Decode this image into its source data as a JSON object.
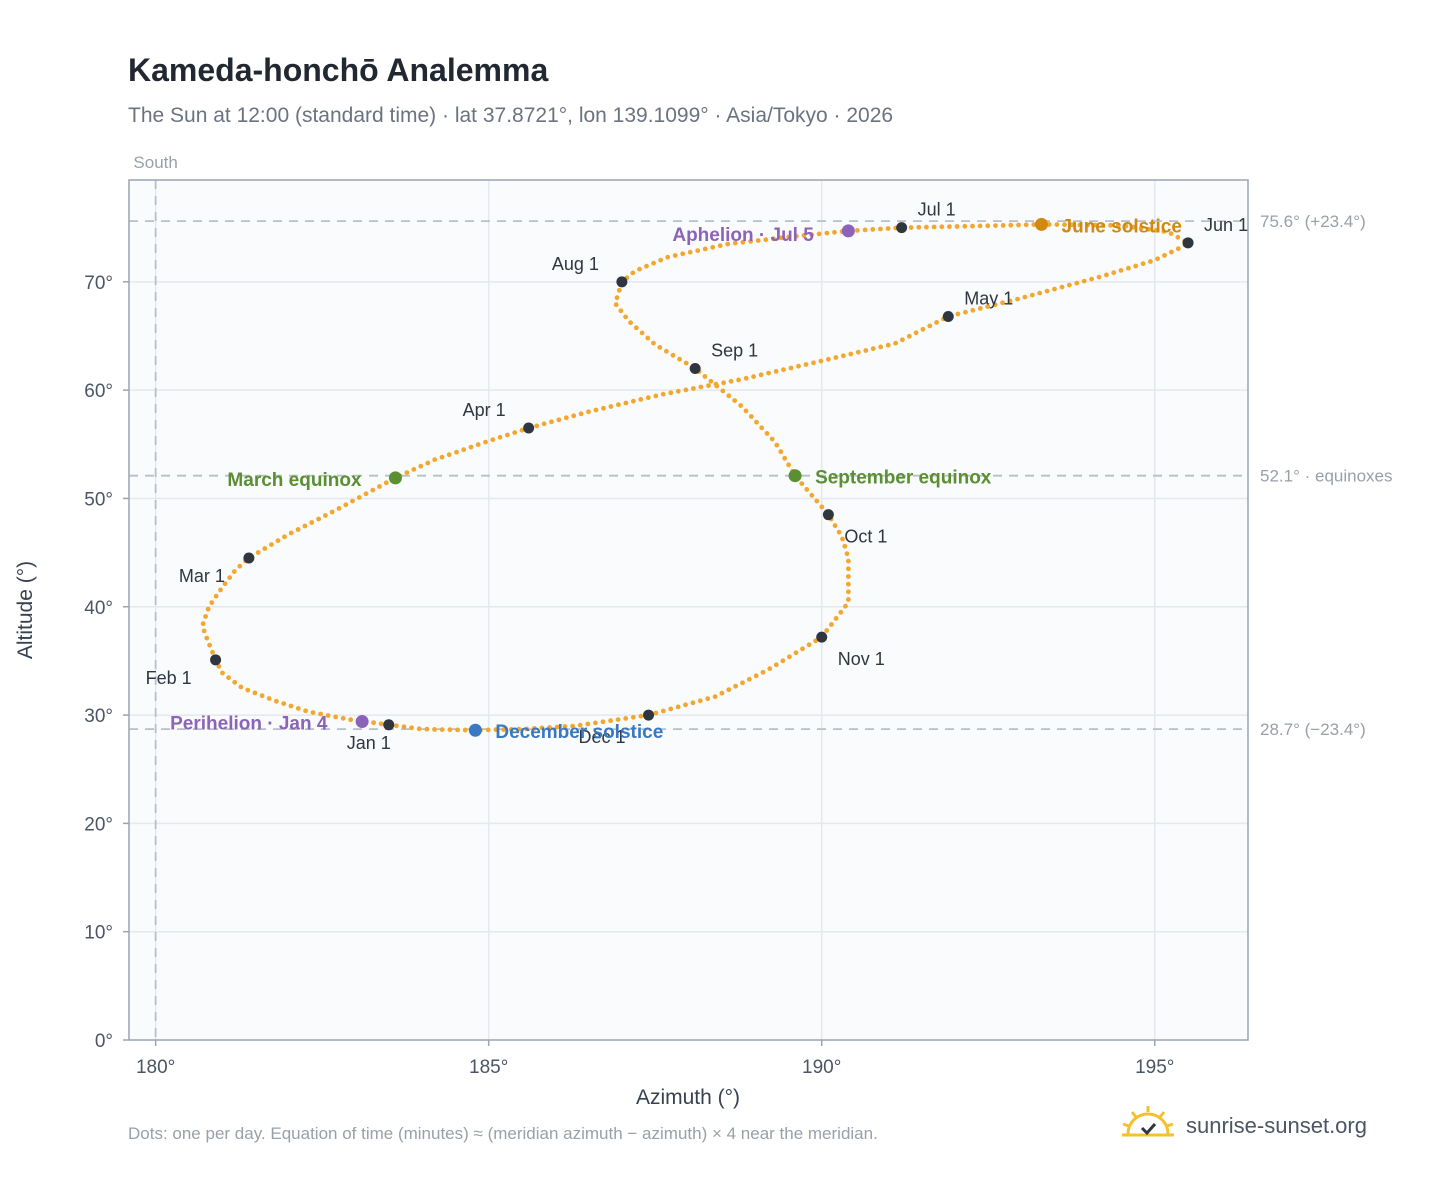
{
  "header": {
    "title": "Kameda-honchō Analemma",
    "subtitle": "The Sun at 12:00 (standard time) · lat 37.8721°, lon 139.1099° · Asia/Tokyo · 2026"
  },
  "footer": {
    "note": "Dots: one per day. Equation of time (minutes) ≈ (meridian azimuth − azimuth) × 4 near the meridian.",
    "brand": "sunrise-sunset.org",
    "brand_icon": "sun-logo-icon"
  },
  "colors": {
    "path": "#f3a72e",
    "month_marker": "#2f3640",
    "equinox": "#5a8f32",
    "june_solstice": "#d08a12",
    "december_solstice": "#3a78c2",
    "apsis": "#8b63b8",
    "reference_line": "#b8c0cc",
    "plot_bg": "#f9fbfd",
    "grid": "#e4e9ef",
    "frame": "#9aa4b2"
  },
  "chart_data": {
    "type": "scatter",
    "xlabel": "Azimuth (°)",
    "ylabel": "Altitude (°)",
    "xlim": [
      179.6,
      196.4
    ],
    "ylim": [
      0,
      79.4
    ],
    "x_ticks": [
      180,
      185,
      190,
      195
    ],
    "x_tick_labels": [
      "180°",
      "185°",
      "190°",
      "195°"
    ],
    "y_ticks": [
      0,
      10,
      20,
      30,
      40,
      50,
      60,
      70
    ],
    "y_tick_labels": [
      "0°",
      "10°",
      "20°",
      "30°",
      "40°",
      "50°",
      "60°",
      "70°"
    ],
    "grid": true,
    "south_line": {
      "azimuth": 180,
      "label": "South"
    },
    "reference_lines": [
      {
        "altitude": 75.6,
        "label": "75.6° (+23.4°)"
      },
      {
        "altitude": 52.1,
        "label": "52.1° · equinoxes"
      },
      {
        "altitude": 28.7,
        "label": "28.7° (−23.4°)"
      }
    ],
    "path_points": [
      [
        183.5,
        29.1
      ],
      [
        182.9,
        29.6
      ],
      [
        182.3,
        30.3
      ],
      [
        181.8,
        31.3
      ],
      [
        181.3,
        32.5
      ],
      [
        181.0,
        33.9
      ],
      [
        180.9,
        35.1
      ],
      [
        180.8,
        36.6
      ],
      [
        180.7,
        38.2
      ],
      [
        180.8,
        40.0
      ],
      [
        181.0,
        41.8
      ],
      [
        181.2,
        43.4
      ],
      [
        181.4,
        44.5
      ],
      [
        182.0,
        46.7
      ],
      [
        182.7,
        48.9
      ],
      [
        183.3,
        50.9
      ],
      [
        183.6,
        51.9
      ],
      [
        184.2,
        53.6
      ],
      [
        185.0,
        55.3
      ],
      [
        185.6,
        56.5
      ],
      [
        186.5,
        58.0
      ],
      [
        187.6,
        59.6
      ],
      [
        188.8,
        61.0
      ],
      [
        190.0,
        62.7
      ],
      [
        191.1,
        64.3
      ],
      [
        191.9,
        66.8
      ],
      [
        193.0,
        68.5
      ],
      [
        194.2,
        70.5
      ],
      [
        195.0,
        72.0
      ],
      [
        195.4,
        73.2
      ],
      [
        195.5,
        73.6
      ],
      [
        195.2,
        74.6
      ],
      [
        194.5,
        75.2
      ],
      [
        193.3,
        75.3
      ],
      [
        192.0,
        75.1
      ],
      [
        191.2,
        75.0
      ],
      [
        190.4,
        74.7
      ],
      [
        189.6,
        74.2
      ],
      [
        188.6,
        73.5
      ],
      [
        187.7,
        72.3
      ],
      [
        187.2,
        71.0
      ],
      [
        187.0,
        70.0
      ],
      [
        186.9,
        68.0
      ],
      [
        187.1,
        66.4
      ],
      [
        187.5,
        64.2
      ],
      [
        188.1,
        62.0
      ],
      [
        188.8,
        58.5
      ],
      [
        189.3,
        55.2
      ],
      [
        189.6,
        52.1
      ],
      [
        190.1,
        48.5
      ],
      [
        190.3,
        46.5
      ],
      [
        190.4,
        44.5
      ],
      [
        190.4,
        42.6
      ],
      [
        190.4,
        40.4
      ],
      [
        190.0,
        37.2
      ],
      [
        189.2,
        34.2
      ],
      [
        188.4,
        31.7
      ],
      [
        187.4,
        30.0
      ],
      [
        186.3,
        29.0
      ],
      [
        185.5,
        28.7
      ],
      [
        184.8,
        28.6
      ],
      [
        184.0,
        28.7
      ],
      [
        183.5,
        29.1
      ]
    ],
    "month_markers": [
      {
        "label": "Jan 1",
        "azimuth": 183.5,
        "altitude": 29.1
      },
      {
        "label": "Feb 1",
        "azimuth": 180.9,
        "altitude": 35.1
      },
      {
        "label": "Mar 1",
        "azimuth": 181.4,
        "altitude": 44.5
      },
      {
        "label": "Apr 1",
        "azimuth": 185.6,
        "altitude": 56.5
      },
      {
        "label": "May 1",
        "azimuth": 191.9,
        "altitude": 66.8
      },
      {
        "label": "Jun 1",
        "azimuth": 195.5,
        "altitude": 73.6
      },
      {
        "label": "Jul 1",
        "azimuth": 191.2,
        "altitude": 75.0
      },
      {
        "label": "Aug 1",
        "azimuth": 187.0,
        "altitude": 70.0
      },
      {
        "label": "Sep 1",
        "azimuth": 188.1,
        "altitude": 62.0
      },
      {
        "label": "Oct 1",
        "azimuth": 190.1,
        "altitude": 48.5
      },
      {
        "label": "Nov 1",
        "azimuth": 190.0,
        "altitude": 37.2
      },
      {
        "label": "Dec 1",
        "azimuth": 187.4,
        "altitude": 30.0
      }
    ],
    "events": [
      {
        "label": "March equinox",
        "azimuth": 183.6,
        "altitude": 51.9,
        "kind": "equinox"
      },
      {
        "label": "September equinox",
        "azimuth": 189.6,
        "altitude": 52.1,
        "kind": "equinox"
      },
      {
        "label": "June solstice",
        "azimuth": 193.3,
        "altitude": 75.3,
        "kind": "june_solstice"
      },
      {
        "label": "December solstice",
        "azimuth": 184.8,
        "altitude": 28.6,
        "kind": "december_solstice"
      },
      {
        "label": "Aphelion · Jul 5",
        "azimuth": 190.4,
        "altitude": 74.7,
        "kind": "apsis"
      },
      {
        "label": "Perihelion · Jan 4",
        "azimuth": 183.1,
        "altitude": 29.4,
        "kind": "apsis"
      }
    ]
  }
}
